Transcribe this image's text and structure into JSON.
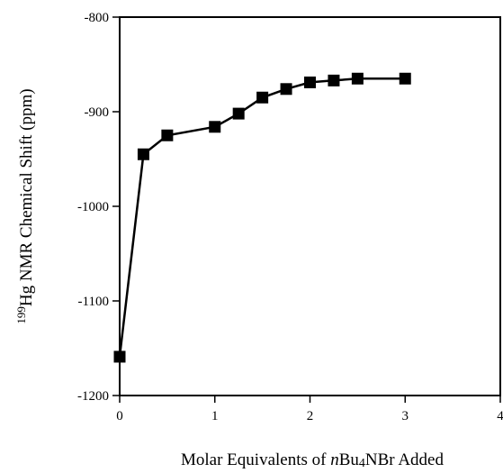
{
  "chart_data": {
    "type": "line",
    "title": "",
    "xlabel": {
      "prefix": "Molar Equivalents of ",
      "italic": "n",
      "middle": "Bu",
      "sub": "4",
      "suffix": "NBr Added"
    },
    "ylabel": {
      "sup": "199",
      "main": "Hg NMR Chemical Shift (ppm)"
    },
    "xlim": [
      0,
      4
    ],
    "ylim": [
      -1200,
      -800
    ],
    "xticks": [
      0,
      1,
      2,
      3,
      4
    ],
    "yticks": [
      -1200,
      -1100,
      -1000,
      -900,
      -800
    ],
    "xtick_labels": [
      "0",
      "1",
      "2",
      "3",
      "4"
    ],
    "ytick_labels": [
      "-1200",
      "-1100",
      "-1000",
      "-900",
      "-800"
    ],
    "grid": false,
    "marker": "square",
    "series": [
      {
        "x": [
          0,
          0.25,
          0.5,
          1.0,
          1.25,
          1.5,
          1.75,
          2.0,
          2.25,
          2.5,
          3.0
        ],
        "y": [
          -1159,
          -945,
          -925,
          -916,
          -902,
          -885,
          -876,
          -869,
          -867,
          -865,
          -865
        ]
      }
    ]
  }
}
